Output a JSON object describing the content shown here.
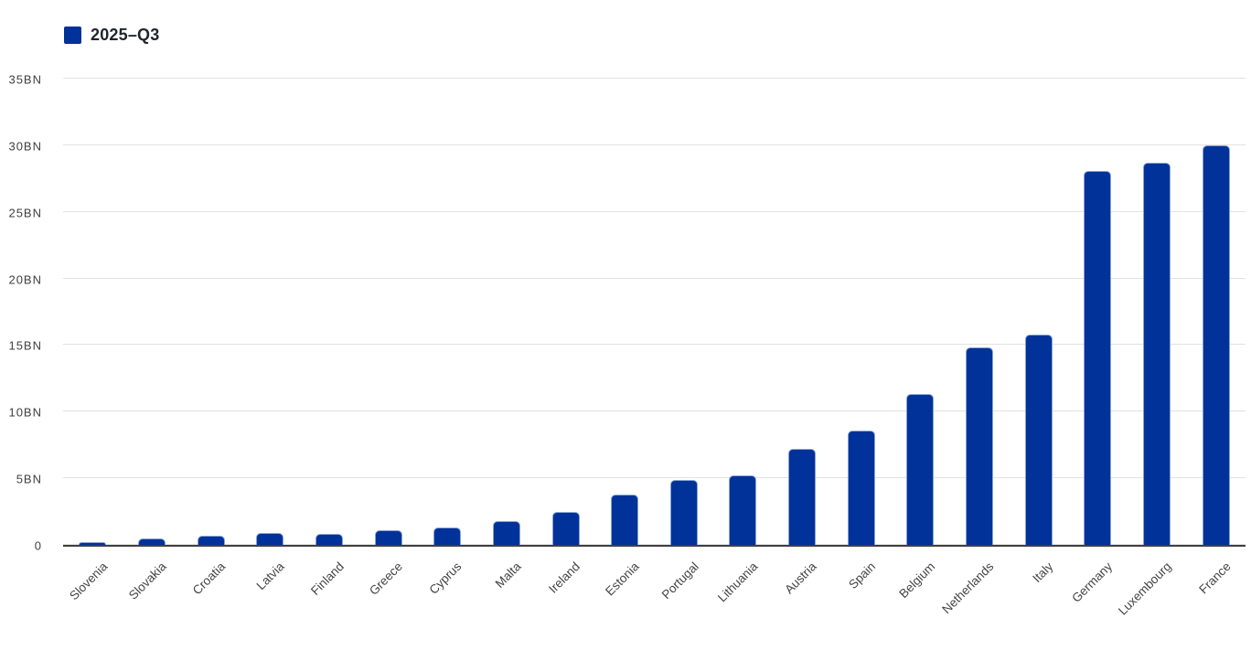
{
  "legend": {
    "label": "2025–Q3"
  },
  "colors": {
    "bar": "#003299",
    "bar_border": "#8aa3d6",
    "grid": "#e2e2e2",
    "axis": "#3f3f3f",
    "y_label": "#3f3f3f",
    "x_label": "#444444",
    "legend_text": "#22242d"
  },
  "chart_data": {
    "type": "bar",
    "title": "",
    "categories": [
      "Slovenia",
      "Slovakia",
      "Croatia",
      "Latvia",
      "Finland",
      "Greece",
      "Cyprus",
      "Malta",
      "Ireland",
      "Estonia",
      "Portugal",
      "Lithuania",
      "Austria",
      "Spain",
      "Belgium",
      "Netherlands",
      "Italy",
      "Germany",
      "Luxembourg",
      "France"
    ],
    "series": [
      {
        "name": "2025–Q3",
        "values": [
          0.2,
          0.5,
          0.7,
          0.9,
          0.8,
          1.1,
          1.3,
          1.8,
          2.5,
          3.8,
          4.9,
          5.2,
          7.2,
          8.6,
          11.3,
          14.8,
          15.8,
          28.1,
          28.7,
          30.0
        ]
      }
    ],
    "unit": "BN",
    "xlabel": "",
    "ylabel": "",
    "ylim": [
      0,
      35
    ],
    "yticks": [
      0,
      5,
      10,
      15,
      20,
      25,
      30,
      35
    ],
    "ytick_labels": [
      "0",
      "5BN",
      "10BN",
      "15BN",
      "20BN",
      "25BN",
      "30BN",
      "35BN"
    ],
    "grid": true,
    "legend_position": "top-left",
    "x_label_rotation": -45
  }
}
